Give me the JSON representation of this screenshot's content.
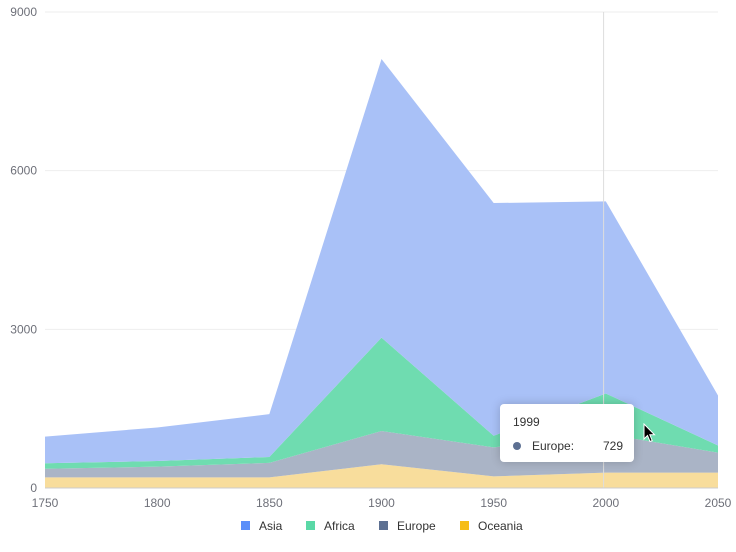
{
  "chart_data": {
    "type": "area",
    "stacked": true,
    "x": [
      "1750",
      "1800",
      "1850",
      "1900",
      "1950",
      "2000",
      "2050"
    ],
    "series": [
      {
        "name": "Oceania",
        "color": "#fac858",
        "values": [
          200,
          200,
          200,
          450,
          220,
          290,
          290
        ]
      },
      {
        "name": "Europe",
        "color": "#5470c6",
        "values": [
          163,
          203,
          276,
          628,
          547,
          729,
          380
        ]
      },
      {
        "name": "Africa",
        "color": "#91cc75",
        "values": [
          106,
          107,
          111,
          1766,
          221,
          767,
          133
        ]
      },
      {
        "name": "Asia",
        "color": "#73c0de",
        "values": [
          502,
          635,
          809,
          5268,
          4400,
          3634,
          947
        ]
      }
    ],
    "legend": [
      "Asia",
      "Africa",
      "Europe",
      "Oceania"
    ],
    "legend_position": "bottom",
    "ylim": [
      0,
      9000
    ],
    "yticks": [
      "0",
      "3000",
      "6000",
      "9000"
    ],
    "grid": true,
    "xlabel": "",
    "ylabel": ""
  },
  "colors": {
    "asia": "#a9c1f7",
    "africa": "#6fdcb0",
    "europe": "#aab4c6",
    "oceania": "#f8dd9c",
    "asia_legend": "#5b8ff9",
    "africa_legend": "#5ad8a6",
    "europe_legend": "#5d7092",
    "oceania_legend": "#f6bd16"
  },
  "tooltip": {
    "title": "1999",
    "series_name": "Europe:",
    "value": "729",
    "dot_color": "#5d7092"
  },
  "cursor_icon": "mouse-pointer-icon"
}
